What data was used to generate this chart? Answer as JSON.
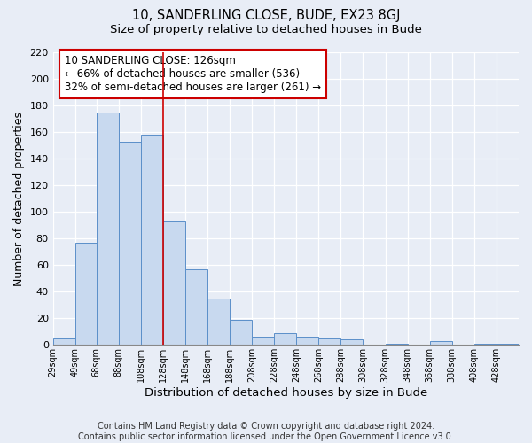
{
  "title": "10, SANDERLING CLOSE, BUDE, EX23 8GJ",
  "subtitle": "Size of property relative to detached houses in Bude",
  "xlabel": "Distribution of detached houses by size in Bude",
  "ylabel": "Number of detached properties",
  "bin_edges": [
    29,
    49,
    68,
    88,
    108,
    128,
    148,
    168,
    188,
    208,
    228,
    248,
    268,
    288,
    308,
    328,
    348,
    368,
    388,
    408,
    428,
    448
  ],
  "bar_heights": [
    5,
    77,
    175,
    153,
    158,
    93,
    57,
    35,
    19,
    6,
    9,
    6,
    5,
    4,
    0,
    1,
    0,
    3,
    0,
    1,
    1
  ],
  "bar_fill_color": "#c8d9ef",
  "bar_edge_color": "#5b8fc9",
  "vline_x": 128,
  "vline_color": "#cc0000",
  "annotation_box_text": "10 SANDERLING CLOSE: 126sqm\n← 66% of detached houses are smaller (536)\n32% of semi-detached houses are larger (261) →",
  "annotation_box_edge_color": "#cc0000",
  "annotation_box_bg_color": "#ffffff",
  "xlim_left": 29,
  "xlim_right": 448,
  "ylim_top": 220,
  "ylim_bottom": 0,
  "yticks": [
    0,
    20,
    40,
    60,
    80,
    100,
    120,
    140,
    160,
    180,
    200,
    220
  ],
  "xtick_positions": [
    29,
    49,
    68,
    88,
    108,
    128,
    148,
    168,
    188,
    208,
    228,
    248,
    268,
    288,
    308,
    328,
    348,
    368,
    388,
    408,
    428
  ],
  "xtick_labels": [
    "29sqm",
    "49sqm",
    "68sqm",
    "88sqm",
    "108sqm",
    "128sqm",
    "148sqm",
    "168sqm",
    "188sqm",
    "208sqm",
    "228sqm",
    "248sqm",
    "268sqm",
    "288sqm",
    "308sqm",
    "328sqm",
    "348sqm",
    "368sqm",
    "388sqm",
    "408sqm",
    "428sqm"
  ],
  "footer_text": "Contains HM Land Registry data © Crown copyright and database right 2024.\nContains public sector information licensed under the Open Government Licence v3.0.",
  "background_color": "#e8edf6",
  "plot_background_color": "#e8edf6",
  "title_fontsize": 10.5,
  "subtitle_fontsize": 9.5,
  "annotation_fontsize": 8.5,
  "footer_fontsize": 7,
  "ylabel_fontsize": 9,
  "xlabel_fontsize": 9.5
}
